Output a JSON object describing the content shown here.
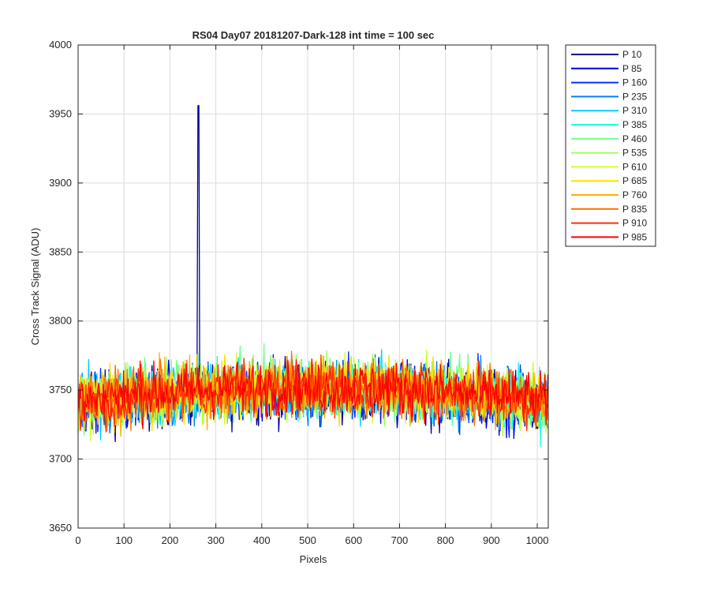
{
  "chart_data": {
    "type": "line",
    "title": "RS04 Day07 20181207-Dark-128 int time = 100 sec",
    "xlabel": "Pixels",
    "ylabel": "Cross Track Signal (ADU)",
    "xlim": [
      0,
      1024
    ],
    "ylim": [
      3650,
      4000
    ],
    "xticks": [
      0,
      100,
      200,
      300,
      400,
      500,
      600,
      700,
      800,
      900,
      1000
    ],
    "yticks": [
      3650,
      3700,
      3750,
      3800,
      3850,
      3900,
      3950,
      4000
    ],
    "grid": true,
    "legend_position": "outside-right",
    "x_range": [
      1,
      1024
    ],
    "series": [
      {
        "name": "P 10",
        "color": "#00008f",
        "baseline": 3748,
        "edge_drop": 10,
        "noise": 11,
        "spike": {
          "x": 262,
          "y": 3956
        }
      },
      {
        "name": "P 85",
        "color": "#0000df",
        "baseline": 3749,
        "edge_drop": 10,
        "noise": 11
      },
      {
        "name": "P 160",
        "color": "#0030ff",
        "baseline": 3750,
        "edge_drop": 10,
        "noise": 11
      },
      {
        "name": "P 235",
        "color": "#0080ff",
        "baseline": 3750,
        "edge_drop": 10,
        "noise": 11
      },
      {
        "name": "P 310",
        "color": "#00cfff",
        "baseline": 3751,
        "edge_drop": 10,
        "noise": 11
      },
      {
        "name": "P 385",
        "color": "#20ffdf",
        "baseline": 3751,
        "edge_drop": 10,
        "noise": 11
      },
      {
        "name": "P 460",
        "color": "#70ff8f",
        "baseline": 3752,
        "edge_drop": 10,
        "noise": 11
      },
      {
        "name": "P 535",
        "color": "#9fff60",
        "baseline": 3752,
        "edge_drop": 10,
        "noise": 11
      },
      {
        "name": "P 610",
        "color": "#cfff30",
        "baseline": 3752,
        "edge_drop": 10,
        "noise": 11
      },
      {
        "name": "P 685",
        "color": "#ffdf00",
        "baseline": 3752,
        "edge_drop": 10,
        "noise": 11
      },
      {
        "name": "P 760",
        "color": "#ffb000",
        "baseline": 3752,
        "edge_drop": 10,
        "noise": 11
      },
      {
        "name": "P 835",
        "color": "#ff7000",
        "baseline": 3752,
        "edge_drop": 10,
        "noise": 10
      },
      {
        "name": "P 910",
        "color": "#ff3000",
        "baseline": 3752,
        "edge_drop": 10,
        "noise": 10
      },
      {
        "name": "P 985",
        "color": "#ff0000",
        "baseline": 3752,
        "edge_drop": 10,
        "noise": 10
      }
    ]
  }
}
